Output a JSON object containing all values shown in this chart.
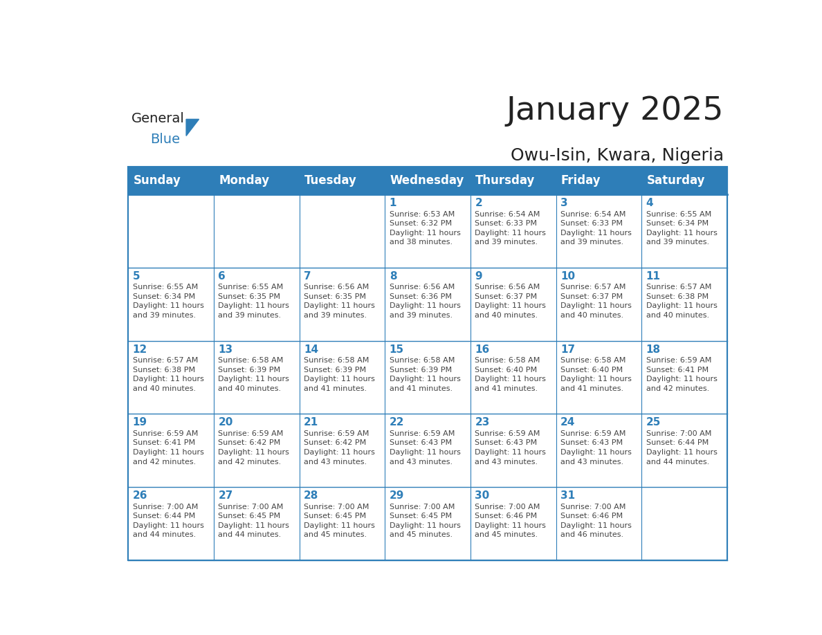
{
  "title": "January 2025",
  "subtitle": "Owu-Isin, Kwara, Nigeria",
  "header_bg_color": "#2E7EB8",
  "header_text_color": "#FFFFFF",
  "cell_bg_color": "#FFFFFF",
  "border_color": "#2E7EB8",
  "day_number_color": "#2E7EB8",
  "cell_text_color": "#444444",
  "days_of_week": [
    "Sunday",
    "Monday",
    "Tuesday",
    "Wednesday",
    "Thursday",
    "Friday",
    "Saturday"
  ],
  "title_color": "#222222",
  "subtitle_color": "#222222",
  "logo_general_color": "#222222",
  "logo_blue_color": "#2E7EB8",
  "weeks": [
    [
      {
        "day": 0,
        "text": ""
      },
      {
        "day": 0,
        "text": ""
      },
      {
        "day": 0,
        "text": ""
      },
      {
        "day": 1,
        "text": "Sunrise: 6:53 AM\nSunset: 6:32 PM\nDaylight: 11 hours\nand 38 minutes."
      },
      {
        "day": 2,
        "text": "Sunrise: 6:54 AM\nSunset: 6:33 PM\nDaylight: 11 hours\nand 39 minutes."
      },
      {
        "day": 3,
        "text": "Sunrise: 6:54 AM\nSunset: 6:33 PM\nDaylight: 11 hours\nand 39 minutes."
      },
      {
        "day": 4,
        "text": "Sunrise: 6:55 AM\nSunset: 6:34 PM\nDaylight: 11 hours\nand 39 minutes."
      }
    ],
    [
      {
        "day": 5,
        "text": "Sunrise: 6:55 AM\nSunset: 6:34 PM\nDaylight: 11 hours\nand 39 minutes."
      },
      {
        "day": 6,
        "text": "Sunrise: 6:55 AM\nSunset: 6:35 PM\nDaylight: 11 hours\nand 39 minutes."
      },
      {
        "day": 7,
        "text": "Sunrise: 6:56 AM\nSunset: 6:35 PM\nDaylight: 11 hours\nand 39 minutes."
      },
      {
        "day": 8,
        "text": "Sunrise: 6:56 AM\nSunset: 6:36 PM\nDaylight: 11 hours\nand 39 minutes."
      },
      {
        "day": 9,
        "text": "Sunrise: 6:56 AM\nSunset: 6:37 PM\nDaylight: 11 hours\nand 40 minutes."
      },
      {
        "day": 10,
        "text": "Sunrise: 6:57 AM\nSunset: 6:37 PM\nDaylight: 11 hours\nand 40 minutes."
      },
      {
        "day": 11,
        "text": "Sunrise: 6:57 AM\nSunset: 6:38 PM\nDaylight: 11 hours\nand 40 minutes."
      }
    ],
    [
      {
        "day": 12,
        "text": "Sunrise: 6:57 AM\nSunset: 6:38 PM\nDaylight: 11 hours\nand 40 minutes."
      },
      {
        "day": 13,
        "text": "Sunrise: 6:58 AM\nSunset: 6:39 PM\nDaylight: 11 hours\nand 40 minutes."
      },
      {
        "day": 14,
        "text": "Sunrise: 6:58 AM\nSunset: 6:39 PM\nDaylight: 11 hours\nand 41 minutes."
      },
      {
        "day": 15,
        "text": "Sunrise: 6:58 AM\nSunset: 6:39 PM\nDaylight: 11 hours\nand 41 minutes."
      },
      {
        "day": 16,
        "text": "Sunrise: 6:58 AM\nSunset: 6:40 PM\nDaylight: 11 hours\nand 41 minutes."
      },
      {
        "day": 17,
        "text": "Sunrise: 6:58 AM\nSunset: 6:40 PM\nDaylight: 11 hours\nand 41 minutes."
      },
      {
        "day": 18,
        "text": "Sunrise: 6:59 AM\nSunset: 6:41 PM\nDaylight: 11 hours\nand 42 minutes."
      }
    ],
    [
      {
        "day": 19,
        "text": "Sunrise: 6:59 AM\nSunset: 6:41 PM\nDaylight: 11 hours\nand 42 minutes."
      },
      {
        "day": 20,
        "text": "Sunrise: 6:59 AM\nSunset: 6:42 PM\nDaylight: 11 hours\nand 42 minutes."
      },
      {
        "day": 21,
        "text": "Sunrise: 6:59 AM\nSunset: 6:42 PM\nDaylight: 11 hours\nand 43 minutes."
      },
      {
        "day": 22,
        "text": "Sunrise: 6:59 AM\nSunset: 6:43 PM\nDaylight: 11 hours\nand 43 minutes."
      },
      {
        "day": 23,
        "text": "Sunrise: 6:59 AM\nSunset: 6:43 PM\nDaylight: 11 hours\nand 43 minutes."
      },
      {
        "day": 24,
        "text": "Sunrise: 6:59 AM\nSunset: 6:43 PM\nDaylight: 11 hours\nand 43 minutes."
      },
      {
        "day": 25,
        "text": "Sunrise: 7:00 AM\nSunset: 6:44 PM\nDaylight: 11 hours\nand 44 minutes."
      }
    ],
    [
      {
        "day": 26,
        "text": "Sunrise: 7:00 AM\nSunset: 6:44 PM\nDaylight: 11 hours\nand 44 minutes."
      },
      {
        "day": 27,
        "text": "Sunrise: 7:00 AM\nSunset: 6:45 PM\nDaylight: 11 hours\nand 44 minutes."
      },
      {
        "day": 28,
        "text": "Sunrise: 7:00 AM\nSunset: 6:45 PM\nDaylight: 11 hours\nand 45 minutes."
      },
      {
        "day": 29,
        "text": "Sunrise: 7:00 AM\nSunset: 6:45 PM\nDaylight: 11 hours\nand 45 minutes."
      },
      {
        "day": 30,
        "text": "Sunrise: 7:00 AM\nSunset: 6:46 PM\nDaylight: 11 hours\nand 45 minutes."
      },
      {
        "day": 31,
        "text": "Sunrise: 7:00 AM\nSunset: 6:46 PM\nDaylight: 11 hours\nand 46 minutes."
      },
      {
        "day": 0,
        "text": ""
      }
    ]
  ]
}
